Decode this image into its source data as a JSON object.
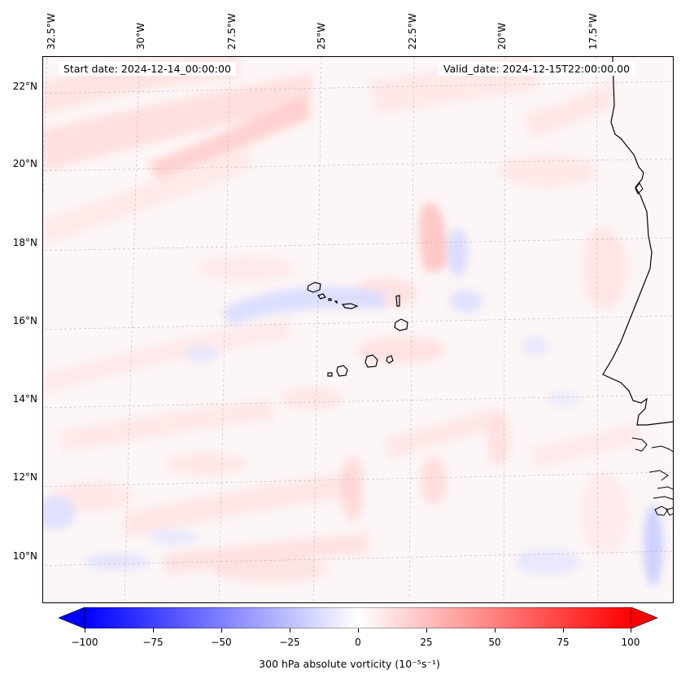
{
  "map": {
    "start_label": "Start date: 2024-12-14_00:00:00",
    "valid_label": "Valid_date: 2024-12-15T22:00:00.00",
    "lon_labels": [
      "32.5°W",
      "30°W",
      "27.5°W",
      "25°W",
      "22.5°W",
      "20°W",
      "17.5°W"
    ],
    "lat_labels": [
      "22°N",
      "20°N",
      "18°N",
      "16°N",
      "14°N",
      "12°N",
      "10°N"
    ],
    "field": "300 hPa absolute vorticity",
    "colors": {
      "negative": "#0000ff",
      "positive": "#ff0000",
      "coast": "#000000",
      "grid": "#bbbbbb"
    }
  },
  "colorbar": {
    "ticks": [
      "−100",
      "−75",
      "−50",
      "−25",
      "0",
      "25",
      "50",
      "75",
      "100"
    ],
    "label": "300 hPa absolute vorticity (10⁻⁵s⁻¹)",
    "range": [
      -100,
      100
    ]
  }
}
